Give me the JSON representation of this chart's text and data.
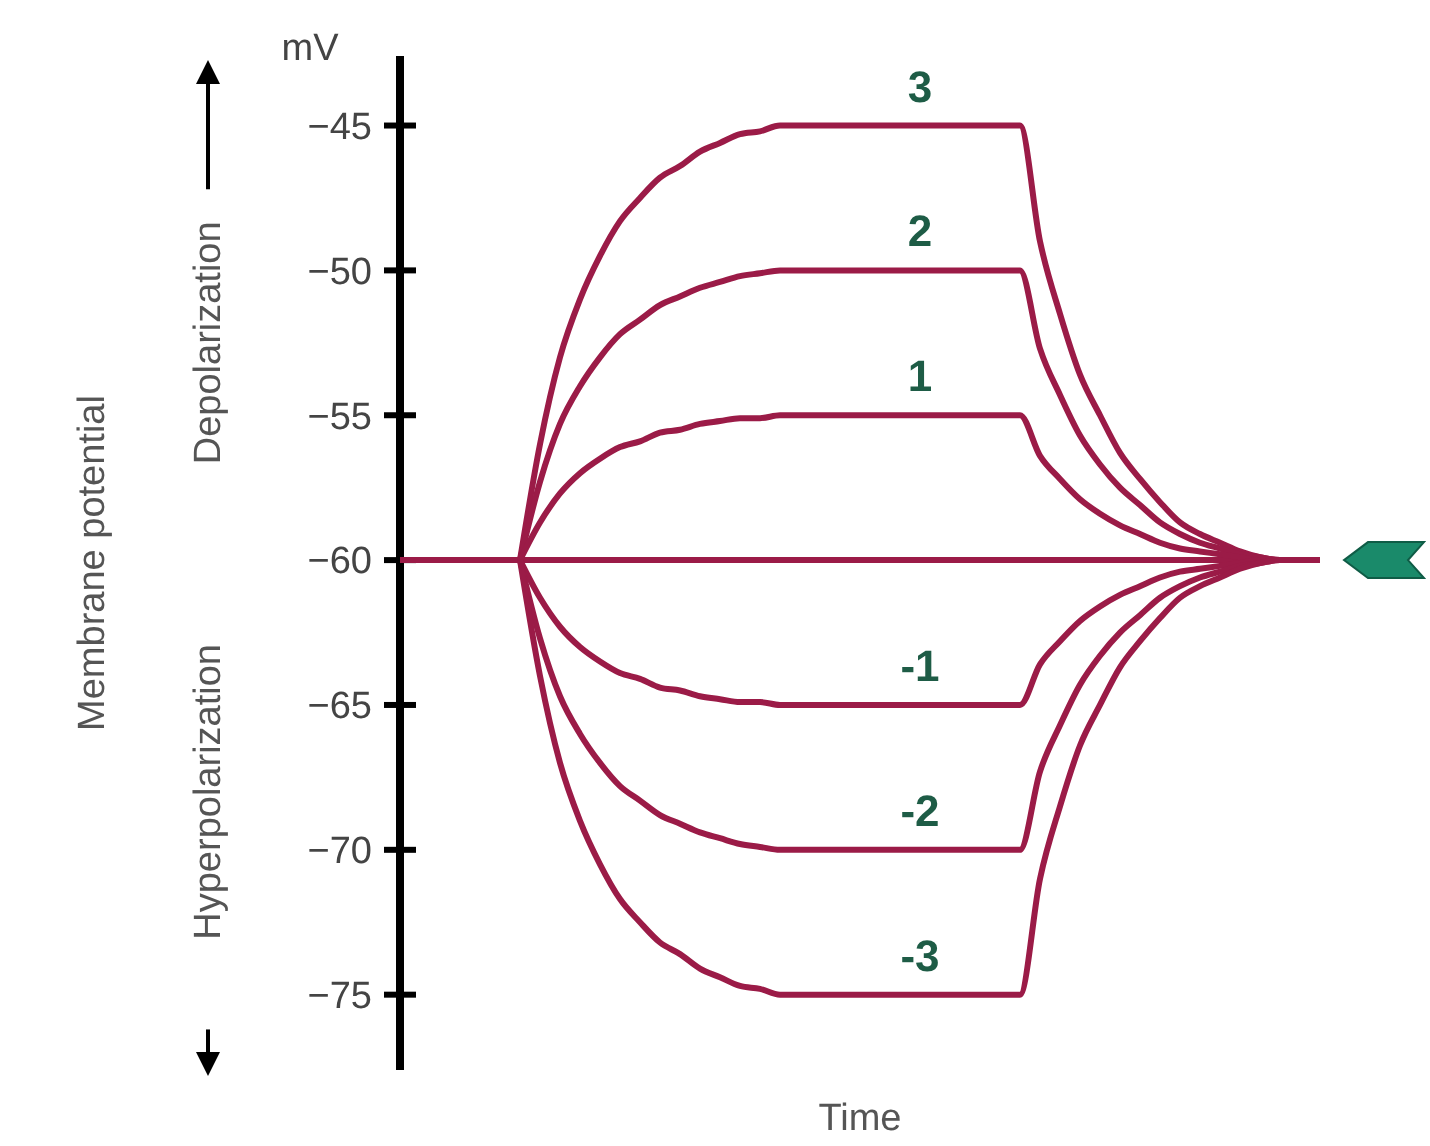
{
  "chart_data": {
    "type": "line",
    "xlabel": "Time",
    "annotations": [
      "mV",
      "Depolarization",
      "Hyperpolarization",
      "Membrane potential"
    ],
    "categories": [
      null,
      null,
      null,
      null,
      null,
      null,
      null,
      null,
      null,
      null,
      null,
      null,
      null,
      null,
      null,
      null,
      null,
      null,
      null,
      null,
      null,
      null,
      null,
      null,
      null,
      null,
      null,
      null,
      null,
      null,
      null,
      null,
      null,
      null,
      null,
      null,
      null,
      null,
      null,
      null,
      null,
      null,
      null,
      null,
      null,
      null,
      null
    ],
    "ylim": [
      -77.6,
      -42.6
    ],
    "yticks": [
      -45,
      -50,
      -55,
      -60,
      -65,
      -70,
      -75
    ],
    "grid": false,
    "tick_labels": "y",
    "marker": "none",
    "line_style": "solid",
    "series": [
      {
        "color": "#9b1b47",
        "values": [
          -60,
          -60,
          -60,
          -60,
          -60,
          -60,
          -60,
          -60,
          -60,
          -60,
          -60,
          -60,
          -60,
          -60,
          -60,
          -60,
          -60,
          -60,
          -60,
          -60,
          -60,
          -60,
          -60,
          -60,
          -60,
          -60,
          -60,
          -60,
          -60,
          -60,
          -60,
          -60,
          -60,
          -60,
          -60,
          -60,
          -60,
          -60,
          -60,
          -60,
          -60,
          -60,
          -60,
          -60,
          -60,
          -60,
          -60
        ]
      },
      {
        "name": "3",
        "color": "#9b1b47",
        "values": [
          null,
          null,
          null,
          null,
          null,
          null,
          -60,
          -56,
          -53,
          -51,
          -49.5,
          -48.3,
          -47.5,
          -46.8,
          -46.4,
          -45.9,
          -45.6,
          -45.3,
          -45.2,
          -45,
          -45,
          -45,
          -45,
          -45,
          -45,
          -45,
          -45,
          -45,
          -45,
          -45,
          -45,
          -45,
          -49,
          -51.5,
          -53.6,
          -55,
          -56.3,
          -57.2,
          -58,
          -58.7,
          -59.1,
          -59.4,
          -59.7,
          -59.9,
          -60,
          -60,
          null
        ]
      },
      {
        "name": "2",
        "color": "#9b1b47",
        "values": [
          null,
          null,
          null,
          null,
          null,
          null,
          -60,
          -57.3,
          -55.3,
          -54,
          -53,
          -52.2,
          -51.7,
          -51.2,
          -50.9,
          -50.6,
          -50.4,
          -50.2,
          -50.1,
          -50,
          -50,
          -50,
          -50,
          -50,
          -50,
          -50,
          -50,
          -50,
          -50,
          -50,
          -50,
          -50,
          -52.7,
          -54.3,
          -55.7,
          -56.7,
          -57.5,
          -58.1,
          -58.7,
          -59.1,
          -59.4,
          -59.6,
          -59.8,
          -59.9,
          -60,
          -60,
          null
        ]
      },
      {
        "name": "1",
        "color": "#9b1b47",
        "values": [
          null,
          null,
          null,
          null,
          null,
          null,
          -60,
          -58.7,
          -57.7,
          -57,
          -56.5,
          -56.1,
          -55.9,
          -55.6,
          -55.5,
          -55.3,
          -55.2,
          -55.1,
          -55.1,
          -55,
          -55,
          -55,
          -55,
          -55,
          -55,
          -55,
          -55,
          -55,
          -55,
          -55,
          -55,
          -55,
          -56.4,
          -57.2,
          -57.9,
          -58.4,
          -58.8,
          -59.1,
          -59.4,
          -59.6,
          -59.7,
          -59.8,
          -59.9,
          -60,
          -60,
          -60,
          null
        ]
      },
      {
        "name": "-1",
        "color": "#9b1b47",
        "values": [
          null,
          null,
          null,
          null,
          null,
          null,
          -60,
          -61.3,
          -62.3,
          -63,
          -63.5,
          -63.9,
          -64.1,
          -64.4,
          -64.5,
          -64.7,
          -64.8,
          -64.9,
          -64.9,
          -65,
          -65,
          -65,
          -65,
          -65,
          -65,
          -65,
          -65,
          -65,
          -65,
          -65,
          -65,
          -65,
          -63.6,
          -62.8,
          -62.1,
          -61.6,
          -61.2,
          -60.9,
          -60.6,
          -60.4,
          -60.3,
          -60.2,
          -60.1,
          -60,
          -60,
          -60,
          null
        ]
      },
      {
        "name": "-2",
        "color": "#9b1b47",
        "values": [
          null,
          null,
          null,
          null,
          null,
          null,
          -60,
          -62.7,
          -64.7,
          -66,
          -67,
          -67.8,
          -68.3,
          -68.8,
          -69.1,
          -69.4,
          -69.6,
          -69.8,
          -69.9,
          -70,
          -70,
          -70,
          -70,
          -70,
          -70,
          -70,
          -70,
          -70,
          -70,
          -70,
          -70,
          -70,
          -67.3,
          -65.7,
          -64.3,
          -63.3,
          -62.5,
          -61.9,
          -61.3,
          -60.9,
          -60.6,
          -60.4,
          -60.2,
          -60.1,
          -60,
          -60,
          null
        ]
      },
      {
        "name": "-3",
        "color": "#9b1b47",
        "values": [
          null,
          null,
          null,
          null,
          null,
          null,
          -60,
          -64,
          -67,
          -69,
          -70.5,
          -71.7,
          -72.5,
          -73.2,
          -73.6,
          -74.1,
          -74.4,
          -74.7,
          -74.8,
          -75,
          -75,
          -75,
          -75,
          -75,
          -75,
          -75,
          -75,
          -75,
          -75,
          -75,
          -75,
          -75,
          -71,
          -68.5,
          -66.4,
          -65,
          -63.7,
          -62.8,
          -62,
          -61.3,
          -60.9,
          -60.6,
          -60.3,
          -60.1,
          -60,
          -60,
          null
        ]
      }
    ]
  }
}
